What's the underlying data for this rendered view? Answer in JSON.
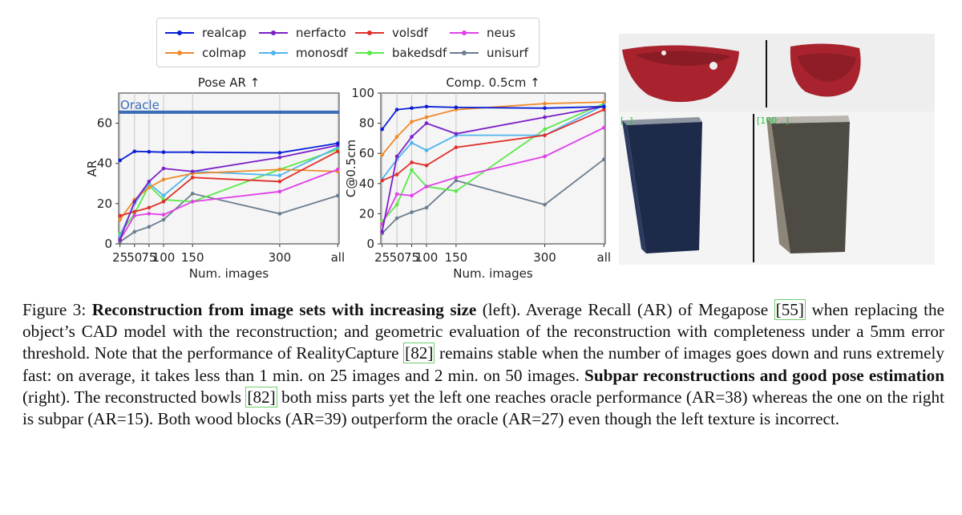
{
  "legend": [
    {
      "label": "realcap",
      "color": "#0a1fd6"
    },
    {
      "label": "nerfacto",
      "color": "#7b1fc8"
    },
    {
      "label": "volsdf",
      "color": "#e0302a"
    },
    {
      "label": "neus",
      "color": "#e040e8"
    },
    {
      "label": "colmap",
      "color": "#ef8a2a"
    },
    {
      "label": "monosdf",
      "color": "#4fb6ec"
    },
    {
      "label": "bakedsdf",
      "color": "#5ae84a"
    },
    {
      "label": "unisurf",
      "color": "#6b7d8e"
    }
  ],
  "chart_data": [
    {
      "type": "line",
      "title": "Pose AR ↑",
      "xlabel": "Num. images",
      "ylabel": "AR",
      "x_categories": [
        "25",
        "50",
        "75",
        "100",
        "150",
        "300",
        "all"
      ],
      "x_positions": [
        25,
        50,
        75,
        100,
        150,
        300,
        400
      ],
      "ylim": [
        0,
        75
      ],
      "yticks": [
        0,
        20,
        40,
        60
      ],
      "oracle": {
        "label": "Oracle",
        "value": 65.5
      },
      "series": [
        {
          "name": "realcap",
          "values": [
            41.5,
            46,
            45.8,
            45.6,
            45.6,
            45.3,
            50
          ]
        },
        {
          "name": "nerfacto",
          "values": [
            2,
            21,
            31,
            37.5,
            36,
            43,
            49
          ]
        },
        {
          "name": "volsdf",
          "values": [
            14,
            16,
            18,
            21,
            33,
            31,
            46
          ]
        },
        {
          "name": "neus",
          "values": [
            2,
            14,
            15,
            14.5,
            21,
            26,
            37
          ]
        },
        {
          "name": "colmap",
          "values": [
            12,
            22,
            28,
            32,
            35,
            37,
            36
          ]
        },
        {
          "name": "monosdf",
          "values": [
            4,
            20,
            30,
            24,
            36,
            34,
            48
          ]
        },
        {
          "name": "bakedsdf",
          "values": [
            5,
            15,
            29,
            22,
            21,
            37,
            47
          ]
        },
        {
          "name": "unisurf",
          "values": [
            1,
            6,
            8.5,
            12,
            25,
            15,
            24
          ]
        }
      ]
    },
    {
      "type": "line",
      "title": "Comp. 0.5cm ↑",
      "xlabel": "Num. images",
      "ylabel": "C@0.5cm",
      "x_categories": [
        "25",
        "50",
        "75",
        "100",
        "150",
        "300",
        "all"
      ],
      "x_positions": [
        25,
        50,
        75,
        100,
        150,
        300,
        400
      ],
      "ylim": [
        0,
        100
      ],
      "yticks": [
        0,
        20,
        40,
        60,
        80,
        100
      ],
      "series": [
        {
          "name": "realcap",
          "values": [
            76,
            89,
            90,
            91,
            90.5,
            90,
            91
          ]
        },
        {
          "name": "nerfacto",
          "values": [
            8,
            58,
            71,
            80,
            73,
            84,
            91
          ]
        },
        {
          "name": "volsdf",
          "values": [
            42,
            46,
            54,
            52,
            64,
            72,
            89
          ]
        },
        {
          "name": "neus",
          "values": [
            13,
            33,
            32,
            38,
            44,
            58,
            77
          ]
        },
        {
          "name": "colmap",
          "values": [
            59,
            71,
            81,
            84,
            89,
            93,
            94
          ]
        },
        {
          "name": "monosdf",
          "values": [
            43,
            56,
            67,
            62,
            72,
            72,
            92
          ]
        },
        {
          "name": "bakedsdf",
          "values": [
            15,
            26,
            49,
            38,
            35,
            76,
            93
          ]
        },
        {
          "name": "unisurf",
          "values": [
            7,
            17,
            21,
            24,
            42,
            26,
            56
          ]
        }
      ]
    }
  ],
  "photos": {
    "label_left": "[..]",
    "label_right": "[100 ..]"
  },
  "caption": {
    "fig": "Figure 3:",
    "bold1": "Reconstruction from image sets with increasing size",
    "t1": " (left).  Average Recall (AR) of Megapose ",
    "c1": "[55]",
    "t2": " when replacing the object’s CAD model with the reconstruction; and geometric evaluation of the reconstruction with completeness under a 5mm error threshold.  Note that the performance of RealityCapture ",
    "c2": "[82]",
    "t3": " remains stable when the number of images goes down and runs extremely fast: on average, it takes less than 1 min. on 25 images and 2 min. on 50 images. ",
    "bold2": "Subpar reconstructions and good pose estimation",
    "t4": " (right). The reconstructed bowls ",
    "c3": "[82]",
    "t5": " both miss parts yet the left one reaches oracle performance (AR=38) whereas the one on the right is subpar (AR=15). Both wood blocks (AR=39) outperform the oracle (AR=27) even though the left texture is incorrect."
  }
}
